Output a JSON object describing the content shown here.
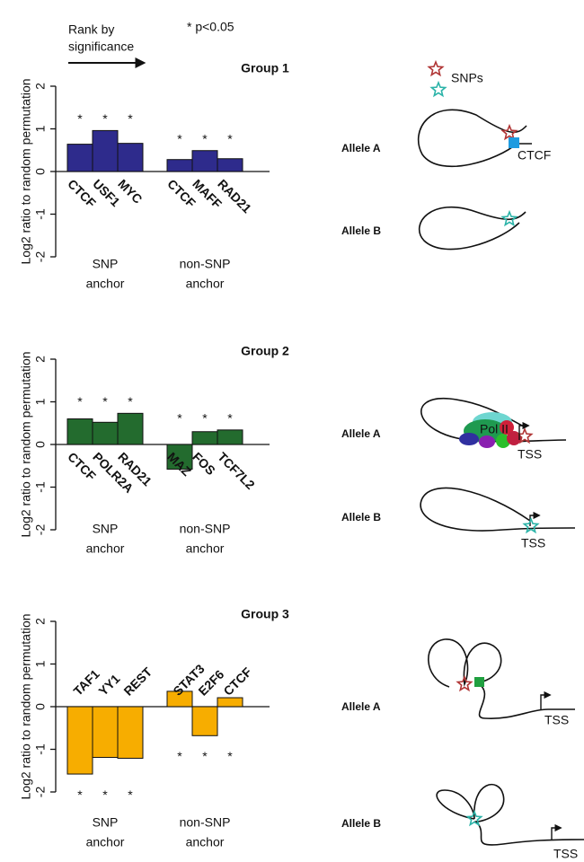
{
  "annotations": {
    "rank": [
      "Rank by",
      "significance"
    ],
    "pvalue": "* p<0.05",
    "snps": "SNPs"
  },
  "diagrams": [
    {
      "allele_a": "Allele A",
      "allele_b": "Allele B",
      "label_a": "CTCF"
    },
    {
      "allele_a": "Allele A",
      "allele_b": "Allele B",
      "protein": "Pol II",
      "label_a": "TSS",
      "label_b": "TSS"
    },
    {
      "allele_a": "Allele A",
      "allele_b": "Allele B",
      "label_a": "TSS",
      "label_b": "TSS"
    }
  ],
  "chart_data": [
    {
      "type": "bar",
      "title": "Group 1",
      "title_color": "#2e2b8c",
      "ylabel": "Log2 ratio to random permutation",
      "categories": [
        "CTCF",
        "USF1",
        "MYC",
        "CTCF",
        "MAFF",
        "RAD21"
      ],
      "values": [
        0.64,
        0.96,
        0.66,
        0.28,
        0.49,
        0.3
      ],
      "color": "#2e2b8c",
      "ylim": [
        -2,
        2
      ],
      "yticks": [
        -2,
        -1,
        0,
        1,
        2
      ],
      "marker": "*",
      "significant": [
        true,
        true,
        true,
        true,
        true,
        true
      ],
      "groups": [
        {
          "label": [
            "SNP",
            "anchor"
          ],
          "color": "#b03535"
        },
        {
          "label": [
            "non-SNP",
            "anchor"
          ],
          "color": "#4a7fa5"
        }
      ]
    },
    {
      "type": "bar",
      "title": "Group 2",
      "title_color": "#1f9a5c",
      "ylabel": "Log2 ratio to random permutation",
      "categories": [
        "CTCF",
        "POLR2A",
        "RAD21",
        "MAZ",
        "FOS",
        "TCF7L2"
      ],
      "values": [
        0.6,
        0.52,
        0.73,
        -0.58,
        0.3,
        0.34
      ],
      "color": "#236b2e",
      "ylim": [
        -2,
        2
      ],
      "yticks": [
        -2,
        -1,
        0,
        1,
        2
      ],
      "marker": "*",
      "significant": [
        true,
        true,
        true,
        true,
        true,
        true
      ],
      "groups": [
        {
          "label": [
            "SNP",
            "anchor"
          ],
          "color": "#b03535"
        },
        {
          "label": [
            "non-SNP",
            "anchor"
          ],
          "color": "#4a7fa5"
        }
      ]
    },
    {
      "type": "bar",
      "title": "Group 3",
      "title_color": "#f5a800",
      "ylabel": "Log2 ratio to random permutation",
      "categories": [
        "TAF1",
        "YY1",
        "REST",
        "STAT3",
        "E2F6",
        "CTCF"
      ],
      "values": [
        -1.58,
        -1.19,
        -1.21,
        0.36,
        -0.68,
        0.21
      ],
      "color": "#f7ad00",
      "ylim": [
        -2,
        2
      ],
      "yticks": [
        -2,
        -1,
        0,
        1,
        2
      ],
      "marker": "*",
      "significant": [
        true,
        true,
        true,
        true,
        true,
        true
      ],
      "groups": [
        {
          "label": [
            "SNP",
            "anchor"
          ],
          "color": "#b03535"
        },
        {
          "label": [
            "non-SNP",
            "anchor"
          ],
          "color": "#4a7fa5"
        }
      ]
    }
  ]
}
